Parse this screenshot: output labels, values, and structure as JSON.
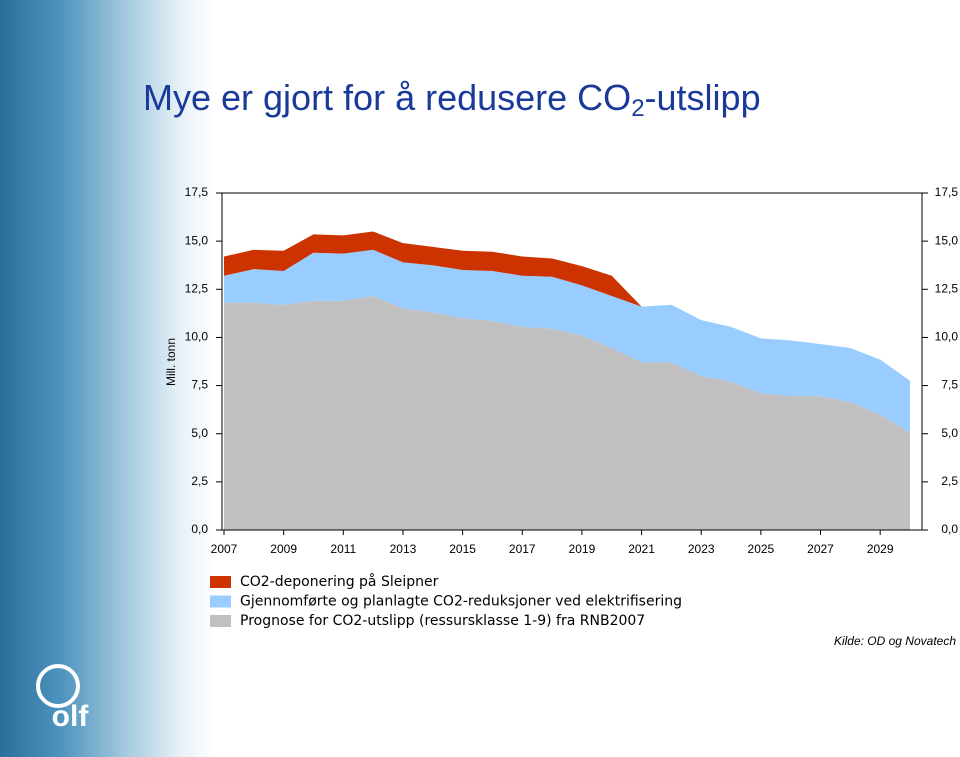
{
  "chart_data": {
    "type": "stacked-area",
    "title": {
      "main": "Mye er gjort for å redusere CO",
      "sub": "2",
      "end": "-utslipp"
    },
    "y_label": "Mill. tonn",
    "source": "Kilde: OD og Novatech",
    "logo": "olf",
    "x": [
      2007,
      2008,
      2009,
      2010,
      2011,
      2012,
      2013,
      2014,
      2015,
      2016,
      2017,
      2018,
      2019,
      2020,
      2021,
      2022,
      2023,
      2024,
      2025,
      2026,
      2027,
      2028,
      2029,
      2030
    ],
    "xlim": [
      2007,
      2030
    ],
    "xticks": [
      2007,
      2009,
      2011,
      2013,
      2015,
      2017,
      2019,
      2021,
      2023,
      2025,
      2027,
      2029
    ],
    "ylim": [
      0,
      17.5
    ],
    "yticks": [
      {
        "value": 0,
        "label": "0,0"
      },
      {
        "value": 2.5,
        "label": "2,5"
      },
      {
        "value": 5,
        "label": "5,0"
      },
      {
        "value": 7.5,
        "label": "7,5"
      },
      {
        "value": 10,
        "label": "10,0"
      },
      {
        "value": 12.5,
        "label": "12,5"
      },
      {
        "value": 15,
        "label": "15,0"
      },
      {
        "value": 17.5,
        "label": "17,5"
      }
    ],
    "series": [
      {
        "name": "Prognose for CO2-utslipp (ressursklasse 1-9) fra RNB2007",
        "color": "#c0c0c0",
        "values": [
          11.8,
          11.8,
          11.7,
          11.9,
          11.9,
          12.15,
          11.5,
          11.3,
          11.0,
          10.85,
          10.55,
          10.45,
          10.1,
          9.45,
          8.7,
          8.7,
          8.0,
          7.7,
          7.1,
          6.95,
          6.95,
          6.65,
          6.0,
          5.05
        ]
      },
      {
        "name": "Gjennomførte og planlagte CO2-reduksjoner ved elektrifisering",
        "color": "#99ccff",
        "values": [
          1.4,
          1.75,
          1.75,
          2.5,
          2.45,
          2.4,
          2.4,
          2.45,
          2.5,
          2.6,
          2.65,
          2.7,
          2.6,
          2.7,
          2.9,
          3.0,
          2.9,
          2.85,
          2.85,
          2.9,
          2.7,
          2.8,
          2.85,
          2.7
        ]
      },
      {
        "name": "CO2-deponering på Sleipner",
        "color": "#cc3300",
        "values": [
          1.0,
          1.0,
          1.05,
          0.95,
          0.95,
          0.95,
          1.0,
          0.95,
          1.0,
          1.0,
          1.0,
          0.95,
          1.0,
          1.05,
          0,
          0,
          0,
          0,
          0,
          0,
          0,
          0,
          0,
          0
        ]
      }
    ]
  }
}
